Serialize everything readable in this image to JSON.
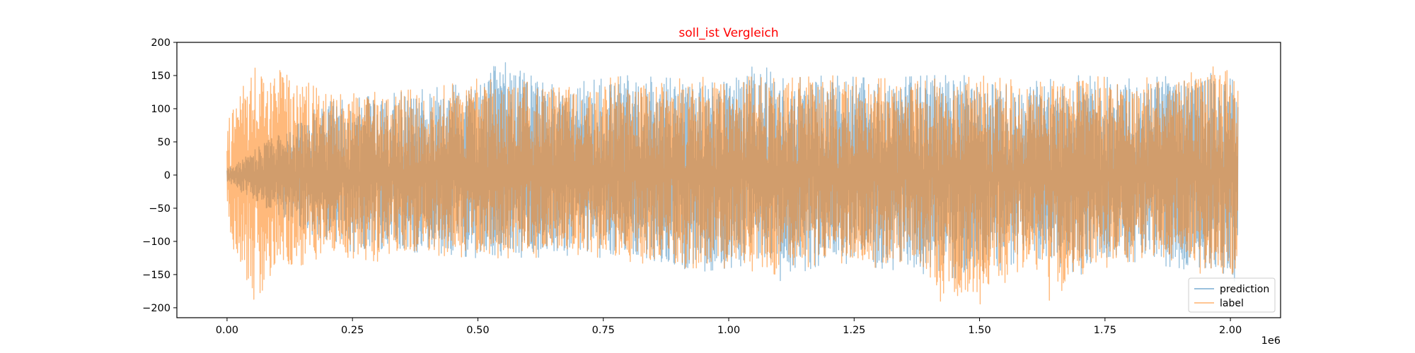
{
  "chart_data": {
    "type": "line",
    "title": "soll_ist Vergleich",
    "title_color": "#ff0000",
    "xlabel": "",
    "ylabel": "",
    "x_offset_label": "1e6",
    "xlim": [
      -0.1,
      2.1
    ],
    "ylim": [
      -215,
      200
    ],
    "x_ticks": [
      0.0,
      0.25,
      0.5,
      0.75,
      1.0,
      1.25,
      1.5,
      1.75,
      2.0
    ],
    "x_tick_labels": [
      "0.00",
      "0.25",
      "0.50",
      "0.75",
      "1.00",
      "1.25",
      "1.50",
      "1.75",
      "2.00"
    ],
    "y_ticks": [
      -200,
      -150,
      -100,
      -50,
      0,
      50,
      100,
      150,
      200
    ],
    "y_tick_labels": [
      "−200",
      "−150",
      "−100",
      "−50",
      "0",
      "50",
      "100",
      "150",
      "200"
    ],
    "grid": false,
    "legend_position": "lower-right",
    "series": [
      {
        "name": "prediction",
        "color": "#1f77b4",
        "x": [
          0.0,
          0.1,
          0.2,
          0.3,
          0.4,
          0.5,
          0.53,
          0.6,
          0.7,
          0.8,
          0.9,
          1.0,
          1.08,
          1.1,
          1.2,
          1.3,
          1.4,
          1.5,
          1.6,
          1.7,
          1.8,
          1.9,
          2.0,
          2.015
        ],
        "envelope_upper": [
          10,
          65,
          110,
          120,
          130,
          140,
          180,
          150,
          140,
          150,
          145,
          150,
          172,
          145,
          150,
          145,
          150,
          150,
          140,
          150,
          145,
          150,
          155,
          145
        ],
        "envelope_lower": [
          -10,
          -65,
          -110,
          -120,
          -115,
          -125,
          -120,
          -125,
          -120,
          -130,
          -150,
          -140,
          -130,
          -160,
          -130,
          -140,
          -150,
          -160,
          -120,
          -150,
          -130,
          -140,
          -160,
          -160
        ]
      },
      {
        "name": "label",
        "color": "#ff7f0e",
        "x": [
          0.0,
          0.05,
          0.1,
          0.2,
          0.3,
          0.4,
          0.5,
          0.6,
          0.7,
          0.8,
          0.9,
          1.0,
          1.1,
          1.2,
          1.3,
          1.4,
          1.42,
          1.5,
          1.6,
          1.64,
          1.7,
          1.8,
          1.9,
          2.0,
          2.015
        ],
        "envelope_upper": [
          85,
          160,
          170,
          120,
          125,
          130,
          145,
          140,
          140,
          150,
          145,
          150,
          145,
          150,
          145,
          150,
          140,
          150,
          140,
          140,
          150,
          145,
          150,
          170,
          145
        ],
        "envelope_lower": [
          -95,
          -190,
          -150,
          -120,
          -130,
          -120,
          -125,
          -125,
          -120,
          -130,
          -140,
          -140,
          -150,
          -130,
          -140,
          -150,
          -190,
          -195,
          -130,
          -190,
          -150,
          -130,
          -140,
          -160,
          -150
        ]
      }
    ]
  }
}
